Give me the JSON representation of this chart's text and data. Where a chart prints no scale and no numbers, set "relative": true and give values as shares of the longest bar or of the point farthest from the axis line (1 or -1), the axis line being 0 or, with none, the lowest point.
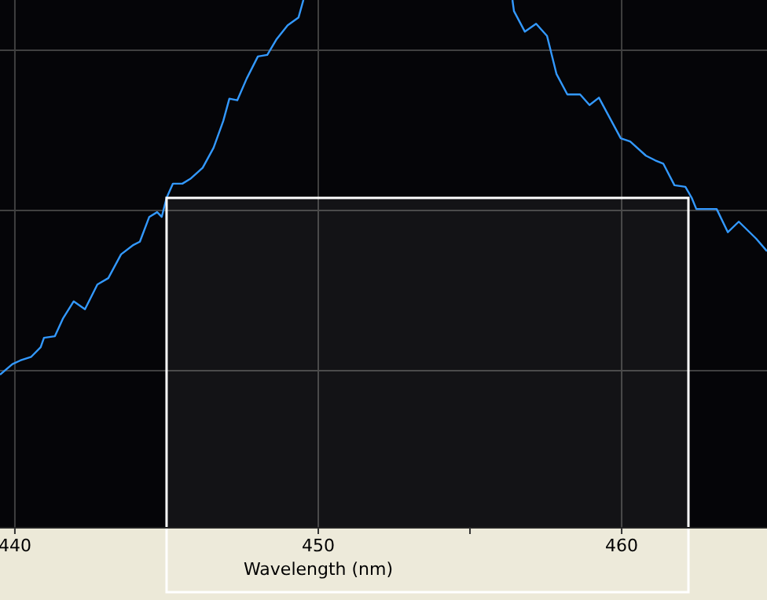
{
  "chart_data": {
    "type": "line",
    "xlabel": "Wavelength (nm)",
    "relative": true,
    "grid": true,
    "xlim": [
      439.51,
      464.79
    ],
    "xticks": [
      440,
      450,
      {
        "value": 455,
        "label": null
      },
      460
    ],
    "x": [
      439.51,
      439.92,
      440.18,
      440.54,
      440.85,
      440.96,
      441.32,
      441.58,
      441.94,
      442.31,
      442.72,
      443.08,
      443.5,
      443.91,
      444.12,
      444.43,
      444.69,
      444.84,
      445.0,
      445.21,
      445.52,
      445.78,
      446.19,
      446.55,
      446.87,
      447.07,
      447.33,
      447.64,
      448.01,
      448.32,
      448.63,
      448.99,
      449.35,
      449.51,
      453,
      456.4,
      456.45,
      456.81,
      457.18,
      457.54,
      457.85,
      458.21,
      458.63,
      458.94,
      459.25,
      459.97,
      460.28,
      460.8,
      461.11,
      461.37,
      461.74,
      462.1,
      462.31,
      462.46,
      463.13,
      463.5,
      463.86,
      464.43,
      464.79
    ],
    "series": [
      {
        "color": "#3399ff",
        "values": [
          0.29,
          0.31,
          0.317,
          0.324,
          0.342,
          0.36,
          0.363,
          0.396,
          0.429,
          0.414,
          0.461,
          0.473,
          0.518,
          0.536,
          0.542,
          0.589,
          0.598,
          0.589,
          0.625,
          0.652,
          0.652,
          0.661,
          0.682,
          0.72,
          0.771,
          0.813,
          0.81,
          0.851,
          0.893,
          0.896,
          0.926,
          0.952,
          0.967,
          1.0,
          null,
          1.0,
          0.979,
          0.94,
          0.955,
          0.932,
          0.86,
          0.821,
          0.821,
          0.801,
          0.815,
          0.738,
          0.732,
          0.705,
          0.696,
          0.69,
          0.649,
          0.646,
          0.625,
          0.604,
          0.604,
          0.56,
          0.58,
          0.548,
          0.524
        ]
      }
    ],
    "bands": [
      {
        "axis": "x",
        "from": 445.0,
        "to": 462.2,
        "color": "#ffffff"
      }
    ]
  }
}
